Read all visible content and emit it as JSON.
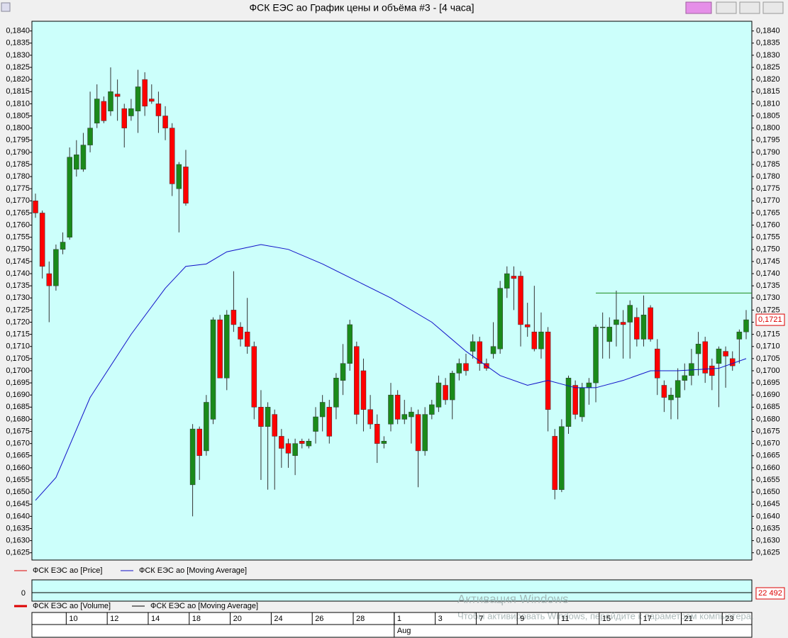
{
  "window_title": "ФСК ЕЭС ао График цены и объёма #3 - [4 часа]",
  "chart_data": {
    "type": "candlestick",
    "open": [
      0.177,
      0.1765,
      0.174,
      0.1735,
      0.175,
      0.1755,
      0.1783,
      0.1783,
      0.1793,
      0.1802,
      0.1811,
      0.1807,
      0.1814,
      0.1808,
      0.1805,
      0.1807,
      0.182,
      0.1812,
      0.181,
      0.1805,
      0.18,
      0.1775,
      0.1784,
      0.1653,
      0.1676,
      0.1667,
      0.168,
      0.1721,
      0.1697,
      0.1725,
      0.1718,
      0.1716,
      0.171,
      0.1685,
      0.1677,
      0.1682,
      0.1673,
      0.167,
      0.1665,
      0.1671,
      0.1669,
      0.1675,
      0.1681,
      0.1685,
      0.1685,
      0.1696,
      0.1703,
      0.171,
      0.17,
      0.1684,
      0.1678,
      0.167,
      0.1678,
      0.169,
      0.168,
      0.1681,
      0.1682,
      0.1667,
      0.1682,
      0.1685,
      0.1694,
      0.1688,
      0.1699,
      0.1703,
      0.1708,
      0.1712,
      0.1703,
      0.1707,
      0.1709,
      0.1734,
      0.1739,
      0.1739,
      0.1719,
      0.1716,
      0.1709,
      0.1716,
      0.1673,
      0.1651,
      0.1677,
      0.1694,
      0.1681,
      0.1693,
      0.1695,
      0.1718,
      0.1712,
      0.1719,
      0.172,
      0.172,
      0.1722,
      0.1713,
      0.1726,
      0.1709,
      0.1694,
      0.1688,
      0.1689,
      0.1696,
      0.1698,
      0.1707,
      0.1712,
      0.1702,
      0.1703,
      0.1708,
      0.1705,
      0.1713,
      0.1716
    ],
    "high": [
      0.1773,
      0.1766,
      0.1745,
      0.1752,
      0.1757,
      0.1792,
      0.1795,
      0.1798,
      0.1815,
      0.1818,
      0.1813,
      0.1825,
      0.182,
      0.181,
      0.1812,
      0.1824,
      0.1823,
      0.1818,
      0.1815,
      0.1809,
      0.1802,
      0.1786,
      0.1791,
      0.1678,
      0.1677,
      0.169,
      0.1722,
      0.1723,
      0.1725,
      0.1741,
      0.172,
      0.173,
      0.1712,
      0.1692,
      0.1687,
      0.1684,
      0.1676,
      0.1672,
      0.1672,
      0.1672,
      0.1672,
      0.1685,
      0.169,
      0.1688,
      0.1699,
      0.1711,
      0.1721,
      0.1712,
      0.1705,
      0.169,
      0.1682,
      0.1673,
      0.1695,
      0.1692,
      0.1688,
      0.1685,
      0.1684,
      0.1685,
      0.1688,
      0.1698,
      0.1697,
      0.17,
      0.1705,
      0.1707,
      0.1715,
      0.1714,
      0.1705,
      0.172,
      0.1737,
      0.1743,
      0.1743,
      0.1741,
      0.1728,
      0.1735,
      0.1724,
      0.1718,
      0.1676,
      0.168,
      0.1698,
      0.1696,
      0.1695,
      0.1697,
      0.1719,
      0.1724,
      0.1722,
      0.1733,
      0.1725,
      0.1729,
      0.1726,
      0.1731,
      0.1727,
      0.1713,
      0.1696,
      0.1693,
      0.1701,
      0.1703,
      0.1709,
      0.1716,
      0.1714,
      0.1705,
      0.171,
      0.171,
      0.1708,
      0.1717,
      0.1725
    ],
    "low": [
      0.1763,
      0.1738,
      0.172,
      0.1733,
      0.1748,
      0.1754,
      0.178,
      0.1782,
      0.179,
      0.18,
      0.1802,
      0.1805,
      0.1803,
      0.1792,
      0.1803,
      0.1798,
      0.1805,
      0.181,
      0.1798,
      0.1795,
      0.1772,
      0.1757,
      0.1768,
      0.164,
      0.1655,
      0.1665,
      0.1678,
      0.1697,
      0.1692,
      0.1716,
      0.171,
      0.1707,
      0.168,
      0.1655,
      0.1651,
      0.1651,
      0.166,
      0.166,
      0.1657,
      0.1668,
      0.1668,
      0.167,
      0.1675,
      0.167,
      0.168,
      0.169,
      0.17,
      0.1678,
      0.1675,
      0.1676,
      0.1662,
      0.1668,
      0.1675,
      0.1678,
      0.1678,
      0.167,
      0.1652,
      0.1665,
      0.168,
      0.1683,
      0.1686,
      0.168,
      0.1696,
      0.1698,
      0.1705,
      0.17,
      0.17,
      0.1705,
      0.1707,
      0.173,
      0.1725,
      0.171,
      0.1714,
      0.1708,
      0.1705,
      0.1675,
      0.1647,
      0.165,
      0.1674,
      0.168,
      0.1679,
      0.1686,
      0.1687,
      0.1705,
      0.1705,
      0.171,
      0.1705,
      0.1705,
      0.171,
      0.171,
      0.1712,
      0.169,
      0.1683,
      0.168,
      0.168,
      0.1692,
      0.1694,
      0.1698,
      0.1695,
      0.1692,
      0.1685,
      0.1693,
      0.17,
      0.1703,
      0.1713
    ],
    "close": [
      0.1765,
      0.1743,
      0.1735,
      0.175,
      0.1753,
      0.1788,
      0.1789,
      0.1793,
      0.18,
      0.1812,
      0.1803,
      0.1815,
      0.1813,
      0.18,
      0.1808,
      0.1817,
      0.1809,
      0.1811,
      0.1805,
      0.18,
      0.1777,
      0.1785,
      0.1769,
      0.1676,
      0.1665,
      0.1687,
      0.1721,
      0.1697,
      0.1723,
      0.1719,
      0.1713,
      0.171,
      0.1685,
      0.1677,
      0.1685,
      0.1673,
      0.1668,
      0.1666,
      0.167,
      0.167,
      0.1671,
      0.1681,
      0.1687,
      0.1673,
      0.1697,
      0.1703,
      0.1719,
      0.1682,
      0.1684,
      0.1678,
      0.167,
      0.1671,
      0.169,
      0.168,
      0.1682,
      0.1683,
      0.1667,
      0.1682,
      0.1686,
      0.1695,
      0.1688,
      0.1699,
      0.1703,
      0.17,
      0.1712,
      0.1703,
      0.1701,
      0.171,
      0.1734,
      0.174,
      0.1738,
      0.1719,
      0.1718,
      0.1709,
      0.1716,
      0.1684,
      0.1651,
      0.1677,
      0.1697,
      0.1682,
      0.1693,
      0.1695,
      0.1718,
      0.1718,
      0.1718,
      0.1721,
      0.1719,
      0.1727,
      0.1713,
      0.1723,
      0.1713,
      0.1697,
      0.1689,
      0.169,
      0.1696,
      0.1698,
      0.1703,
      0.1711,
      0.1699,
      0.1698,
      0.1709,
      0.1706,
      0.1702,
      0.1716,
      0.1721
    ],
    "up_color": "#1a8a1a",
    "down_color": "#ff0000",
    "last_label": "0,1721",
    "moving_average": {
      "name": "ФСК ЕЭС ао [Moving Average]",
      "color": "#1010c8",
      "x": [
        0,
        3,
        8,
        14,
        19,
        22,
        25,
        28,
        33,
        37,
        42,
        47,
        52,
        58,
        63,
        68,
        72,
        75,
        79,
        82,
        86,
        90,
        94,
        100,
        104
      ],
      "values": [
        0.16466,
        0.1656,
        0.1689,
        0.1715,
        0.1734,
        0.1743,
        0.1744,
        0.1749,
        0.1752,
        0.175,
        0.1744,
        0.1737,
        0.173,
        0.172,
        0.1708,
        0.1698,
        0.1694,
        0.1696,
        0.1693,
        0.1693,
        0.1696,
        0.17,
        0.17,
        0.1701,
        0.1705
      ]
    },
    "level": {
      "value": 0.1732,
      "from": 82,
      "color": "#1a8a1a"
    },
    "ylim": [
      0.1622,
      0.1844
    ],
    "yticks": [
      {
        "value": 0.1625,
        "label": "0,1625"
      },
      {
        "value": 0.163,
        "label": "0,1630"
      },
      {
        "value": 0.1635,
        "label": "0,1635"
      },
      {
        "value": 0.164,
        "label": "0,1640"
      },
      {
        "value": 0.1645,
        "label": "0,1645"
      },
      {
        "value": 0.165,
        "label": "0,1650"
      },
      {
        "value": 0.1655,
        "label": "0,1655"
      },
      {
        "value": 0.166,
        "label": "0,1660"
      },
      {
        "value": 0.1665,
        "label": "0,1665"
      },
      {
        "value": 0.167,
        "label": "0,1670"
      },
      {
        "value": 0.1675,
        "label": "0,1675"
      },
      {
        "value": 0.168,
        "label": "0,1680"
      },
      {
        "value": 0.1685,
        "label": "0,1685"
      },
      {
        "value": 0.169,
        "label": "0,1690"
      },
      {
        "value": 0.1695,
        "label": "0,1695"
      },
      {
        "value": 0.17,
        "label": "0,1700"
      },
      {
        "value": 0.1705,
        "label": "0,1705"
      },
      {
        "value": 0.171,
        "label": "0,1710"
      },
      {
        "value": 0.1715,
        "label": "0,1715"
      },
      {
        "value": 0.172,
        "label": "0,1720"
      },
      {
        "value": 0.1725,
        "label": "0,1725"
      },
      {
        "value": 0.173,
        "label": "0,1730"
      },
      {
        "value": 0.1735,
        "label": "0,1735"
      },
      {
        "value": 0.174,
        "label": "0,1740"
      },
      {
        "value": 0.1745,
        "label": "0,1745"
      },
      {
        "value": 0.175,
        "label": "0,1750"
      },
      {
        "value": 0.1755,
        "label": "0,1755"
      },
      {
        "value": 0.176,
        "label": "0,1760"
      },
      {
        "value": 0.1765,
        "label": "0,1765"
      },
      {
        "value": 0.177,
        "label": "0,1770"
      },
      {
        "value": 0.1775,
        "label": "0,1775"
      },
      {
        "value": 0.178,
        "label": "0,1780"
      },
      {
        "value": 0.1785,
        "label": "0,1785"
      },
      {
        "value": 0.179,
        "label": "0,1790"
      },
      {
        "value": 0.1795,
        "label": "0,1795"
      },
      {
        "value": 0.18,
        "label": "0,1800"
      },
      {
        "value": 0.1805,
        "label": "0,1805"
      },
      {
        "value": 0.181,
        "label": "0,1810"
      },
      {
        "value": 0.1815,
        "label": "0,1815"
      },
      {
        "value": 0.182,
        "label": "0,1820"
      },
      {
        "value": 0.1825,
        "label": "0,1825"
      },
      {
        "value": 0.183,
        "label": "0,1830"
      },
      {
        "value": 0.1835,
        "label": "0,1835"
      },
      {
        "value": 0.184,
        "label": "0,1840"
      }
    ],
    "date_ticks": [
      {
        "index": 5,
        "label": "10"
      },
      {
        "index": 11,
        "label": "12"
      },
      {
        "index": 17,
        "label": "14"
      },
      {
        "index": 23,
        "label": "18"
      },
      {
        "index": 29,
        "label": "20"
      },
      {
        "index": 35,
        "label": "24"
      },
      {
        "index": 41,
        "label": "26"
      },
      {
        "index": 47,
        "label": "28"
      },
      {
        "index": 53,
        "label": "1"
      },
      {
        "index": 59,
        "label": "3"
      },
      {
        "index": 65,
        "label": "7"
      },
      {
        "index": 71,
        "label": "9"
      },
      {
        "index": 77,
        "label": "11"
      },
      {
        "index": 83,
        "label": "15"
      },
      {
        "index": 89,
        "label": "17"
      },
      {
        "index": 95,
        "label": "21"
      },
      {
        "index": 101,
        "label": "23"
      }
    ],
    "month_ticks": [
      {
        "index": 53,
        "label": "Aug"
      }
    ],
    "legend": [
      "ФСК ЕЭС ао [Price]",
      "ФСК ЕЭС ао [Moving Average]"
    ],
    "volume_legend": [
      "ФСК ЕЭС ао [Volume]",
      "ФСК ЕЭС ао [Moving Average]"
    ],
    "volume_ticks": [
      0,
      {
        "value": 22492,
        "label": "22 492"
      }
    ]
  },
  "watermark": {
    "title": "Активация Windows",
    "text": "Чтобы активировать Windows, перейдите к параметрам компьютера."
  }
}
